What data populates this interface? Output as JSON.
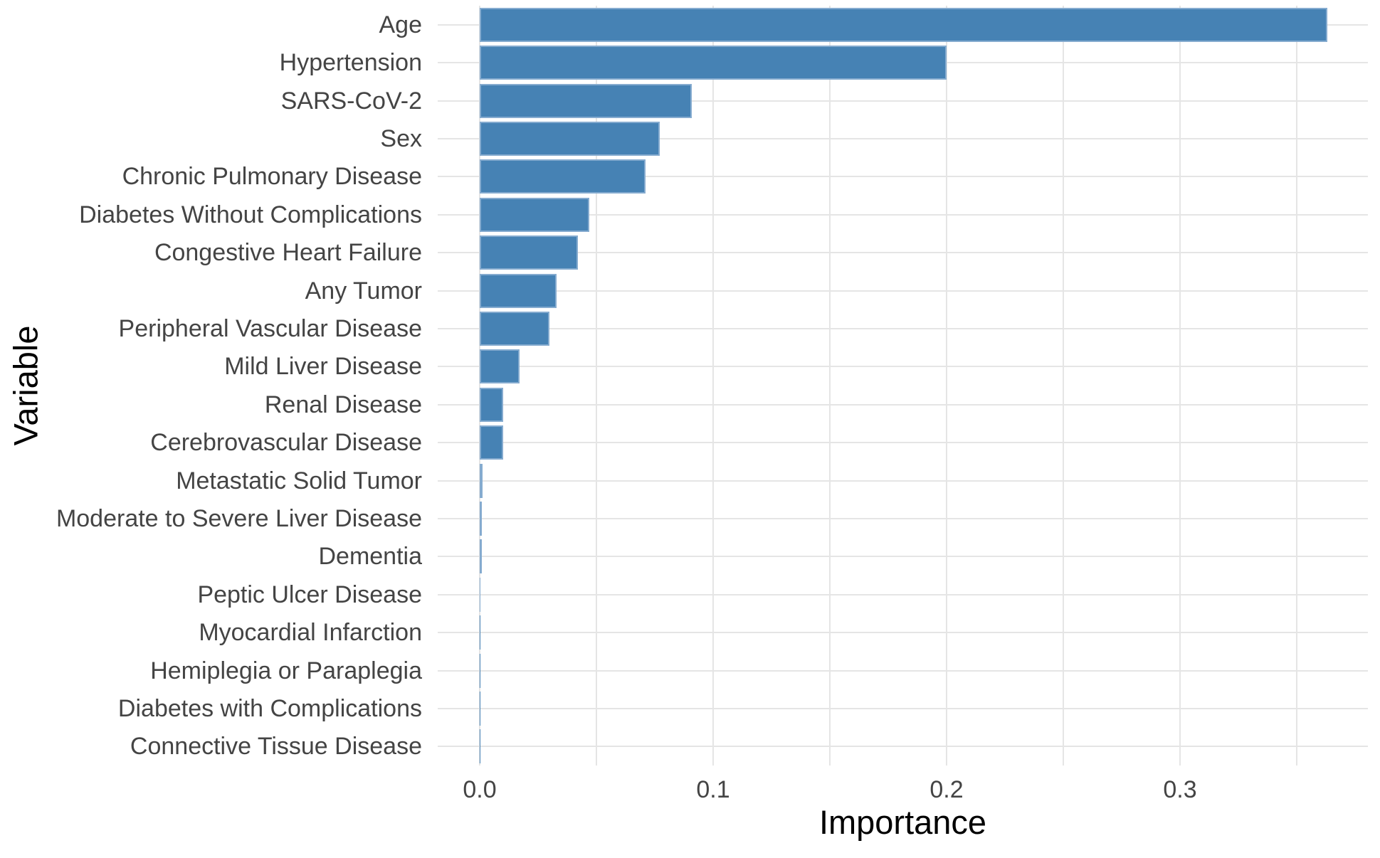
{
  "chart_data": {
    "type": "bar",
    "orientation": "horizontal",
    "title": "",
    "xlabel": "Importance",
    "ylabel": "Variable",
    "categories": [
      "Age",
      "Hypertension",
      "SARS-CoV-2",
      "Sex",
      "Chronic Pulmonary Disease",
      "Diabetes Without Complications",
      "Congestive Heart Failure",
      "Any Tumor",
      "Peripheral Vascular Disease",
      "Mild Liver Disease",
      "Renal Disease",
      "Cerebrovascular Disease",
      "Metastatic Solid Tumor",
      "Moderate to Severe Liver Disease",
      "Dementia",
      "Peptic Ulcer Disease",
      "Myocardial Infarction",
      "Hemiplegia or Paraplegia",
      "Diabetes with Complications",
      "Connective Tissue Disease"
    ],
    "values": [
      0.363,
      0.2,
      0.091,
      0.077,
      0.071,
      0.047,
      0.042,
      0.033,
      0.03,
      0.017,
      0.01,
      0.01,
      0.0013,
      0.0009,
      0.0009,
      0.0002,
      0.0001,
      0.0001,
      5e-05,
      3e-05
    ],
    "x_ticks": [
      0.0,
      0.1,
      0.2,
      0.3
    ],
    "x_tick_labels": [
      "0.0",
      "0.1",
      "0.2",
      "0.3"
    ],
    "xlim": [
      -0.018,
      0.381
    ],
    "grid": true,
    "grid_step": 0.05,
    "legend": "none",
    "bar_color": "#4682B4",
    "grid_color": "#e5e5e5",
    "axis_text_color": "#444444",
    "axis_title_color": "#000000"
  }
}
